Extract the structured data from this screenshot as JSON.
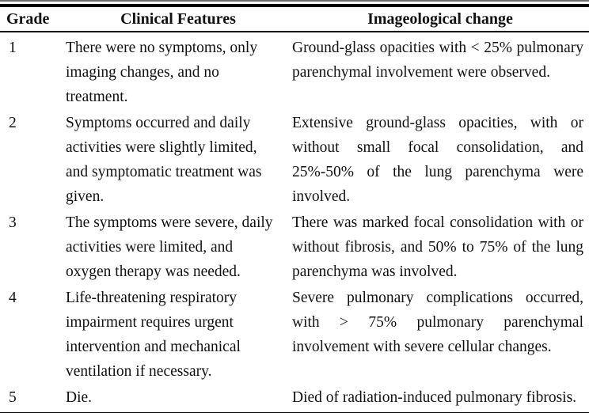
{
  "table": {
    "columns": [
      "Grade",
      "Clinical Features",
      "Imageological change"
    ],
    "rows": [
      {
        "grade": "1",
        "clinical": "There were no symptoms, only imaging changes, and no treatment.",
        "imageological": "Ground-glass opacities with < 25% pulmonary parenchymal involvement were observed."
      },
      {
        "grade": "2",
        "clinical": "Symptoms occurred and daily activities were slightly limited, and symptomatic treatment was given.",
        "imageological": "Extensive ground-glass opacities, with or without small focal consolidation, and 25%-50% of the lung parenchyma were involved."
      },
      {
        "grade": "3",
        "clinical": "The symptoms were severe, daily activities were limited, and oxygen therapy was needed.",
        "imageological": "There was marked focal consolidation with or without fibrosis, and 50% to 75% of the lung parenchyma was involved."
      },
      {
        "grade": "4",
        "clinical": "Life-threatening respiratory impairment requires urgent intervention and mechanical ventilation if necessary.",
        "imageological": "Severe pulmonary complications occurred, with > 75% pulmonary parenchymal involvement with severe cellular changes."
      },
      {
        "grade": "5",
        "clinical": "Die.",
        "imageological": "Died of radiation-induced pulmonary fibrosis."
      }
    ],
    "colors": {
      "text": "#111111",
      "rule_black": "#000000",
      "rule_gray": "#6e6e6e",
      "background": "#ffffff"
    }
  }
}
